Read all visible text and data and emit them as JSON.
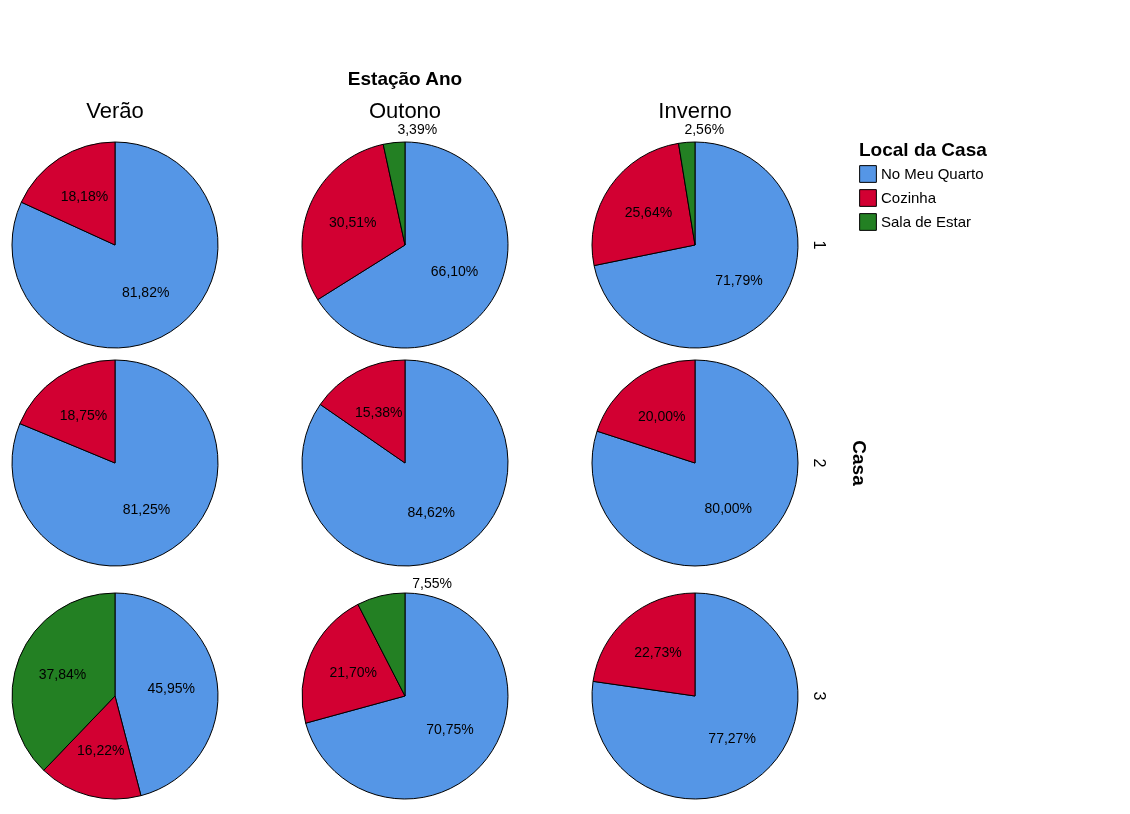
{
  "chart_data": [
    {
      "type": "pie",
      "title": "Verão",
      "legend": "right",
      "legend_title": "Local da Casa",
      "categories": [
        "No Meu Quarto",
        "Cozinha",
        "Sala de Estar"
      ],
      "values": [
        81.82,
        18.18,
        null
      ],
      "value_labels": [
        "81,82%",
        "18,18%",
        null
      ],
      "colors": [
        "#5596e6",
        "#d20032",
        "#238023"
      ]
    },
    {
      "type": "pie",
      "title": "Outono",
      "annotations": [
        "Estação Ano"
      ],
      "categories": [
        null,
        null,
        null
      ],
      "values": [
        66.1,
        30.51,
        3.39
      ],
      "value_labels": [
        "66,10%",
        "30,51%",
        "3,39%"
      ],
      "colors": [
        "#5596e6",
        "#d20032",
        "#238023"
      ]
    },
    {
      "type": "pie",
      "title": "Inverno",
      "y2label": "1",
      "categories": [
        null,
        null,
        null
      ],
      "values": [
        71.79,
        25.64,
        2.56
      ],
      "value_labels": [
        "71,79%",
        "25,64%",
        "2,56%"
      ],
      "colors": [
        "#5596e6",
        "#d20032",
        "#238023"
      ]
    },
    {
      "type": "pie",
      "categories": [
        null,
        null
      ],
      "values": [
        81.25,
        18.75
      ],
      "value_labels": [
        "81,25%",
        "18,75%"
      ],
      "colors": [
        "#5596e6",
        "#d20032"
      ]
    },
    {
      "type": "pie",
      "categories": [
        null,
        null
      ],
      "values": [
        84.62,
        15.38
      ],
      "value_labels": [
        "84,62%",
        "15,38%"
      ],
      "colors": [
        "#5596e6",
        "#d20032"
      ]
    },
    {
      "type": "pie",
      "y2label": "2",
      "annotations": [
        "Casa"
      ],
      "categories": [
        null,
        null
      ],
      "values": [
        80.0,
        20.0
      ],
      "value_labels": [
        "80,00%",
        "20,00%"
      ],
      "colors": [
        "#5596e6",
        "#d20032"
      ]
    },
    {
      "type": "pie",
      "categories": [
        null,
        null,
        null
      ],
      "values": [
        45.95,
        16.22,
        37.84
      ],
      "value_labels": [
        "45,95%",
        "16,22%",
        "37,84%"
      ],
      "colors": [
        "#5596e6",
        "#d20032",
        "#238023"
      ]
    },
    {
      "type": "pie",
      "categories": [
        null,
        null,
        null
      ],
      "values": [
        70.75,
        21.7,
        7.55
      ],
      "value_labels": [
        "70,75%",
        "21,70%",
        "7,55%"
      ],
      "colors": [
        "#5596e6",
        "#d20032",
        "#238023"
      ]
    },
    {
      "type": "pie",
      "y2label": "3",
      "categories": [
        null,
        null
      ],
      "values": [
        77.27,
        22.73
      ],
      "value_labels": [
        "77,27%",
        "22,73%"
      ],
      "colors": [
        "#5596e6",
        "#d20032"
      ]
    }
  ]
}
